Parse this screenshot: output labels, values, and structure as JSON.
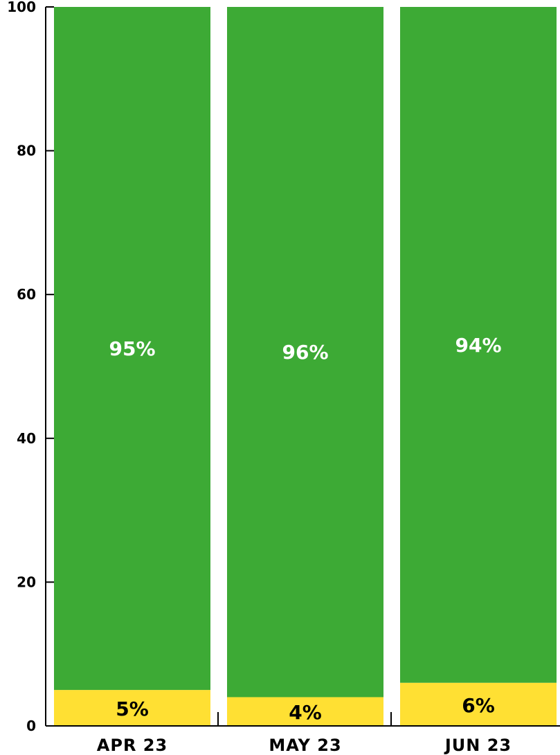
{
  "chart_data": {
    "type": "bar",
    "stacked": true,
    "categories": [
      "APR 23",
      "MAY 23",
      "JUN 23"
    ],
    "series": [
      {
        "values": [
          5,
          4,
          6
        ],
        "labels": [
          "5%",
          "4%",
          "6%"
        ],
        "color": "#FFE033",
        "label_color": "#000000"
      },
      {
        "values": [
          95,
          96,
          94
        ],
        "labels": [
          "95%",
          "96%",
          "94%"
        ],
        "color": "#3DAA35",
        "label_color": "#FFFFFF"
      }
    ],
    "title": "",
    "xlabel": "",
    "ylabel": "",
    "ylim": [
      0,
      100
    ],
    "yticks": [
      "0",
      "20",
      "40",
      "60",
      "80",
      "100"
    ],
    "grid": false,
    "legend": "none"
  }
}
